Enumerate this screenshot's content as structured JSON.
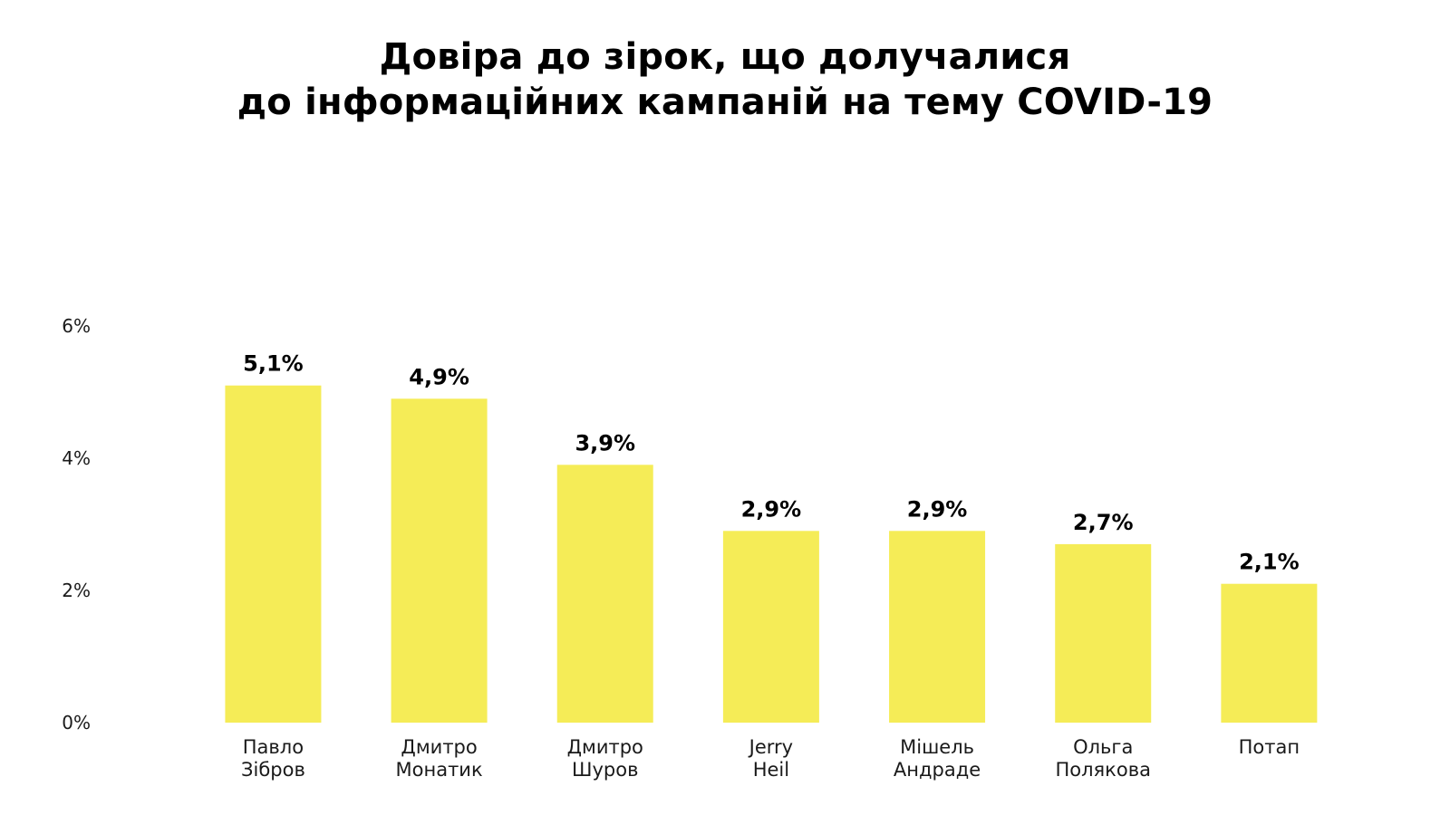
{
  "title": {
    "line1": "Довіра до зірок, що долучалися",
    "line2": "до інформаційних кампаній на тему COVID-19"
  },
  "colors": {
    "bar": "#f5ec57",
    "text": "#000000"
  },
  "chart_data": {
    "type": "bar",
    "title": "Довіра до зірок, що долучалися до інформаційних кампаній на тему COVID-19",
    "xlabel": "",
    "ylabel": "",
    "ylim": [
      0,
      6
    ],
    "grid": false,
    "y_ticks": [
      {
        "value": 0,
        "label": "0%"
      },
      {
        "value": 2,
        "label": "2%"
      },
      {
        "value": 4,
        "label": "4%"
      },
      {
        "value": 6,
        "label": "6%"
      }
    ],
    "categories": [
      [
        "Павло",
        "Зібров"
      ],
      [
        "Дмитро",
        "Монатик"
      ],
      [
        "Дмитро",
        "Шуров"
      ],
      [
        "Jerry",
        "Heil"
      ],
      [
        "Мішель",
        "Андраде"
      ],
      [
        "Ольга",
        "Полякова"
      ],
      [
        "Потап"
      ]
    ],
    "values": [
      5.1,
      4.9,
      3.9,
      2.9,
      2.9,
      2.7,
      2.1
    ],
    "value_labels": [
      "5,1%",
      "4,9%",
      "3,9%",
      "2,9%",
      "2,9%",
      "2,7%",
      "2,1%"
    ]
  }
}
